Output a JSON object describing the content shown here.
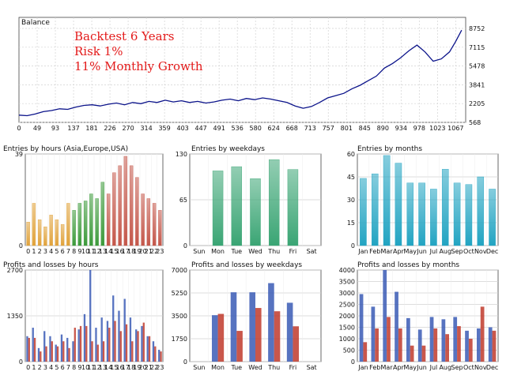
{
  "colors": {
    "balance_line": "#0b138a",
    "annotation": "#e31a1a",
    "grid": "#d2d2d2",
    "frame": "#444444",
    "buy": "#3a5bb5",
    "sell": "#c0392b",
    "orange": "#e0a23a",
    "green": "#3c9a3a",
    "red": "#c4574a",
    "teal_green": "#3aa574",
    "cyan": "#22a4c2"
  },
  "chart_data": [
    {
      "id": "balance",
      "type": "line",
      "title": "Balance",
      "annotations": [
        "Backtest 6 Years",
        "Risk 1%",
        "11% Monthly Growth"
      ],
      "x_ticks": [
        "0",
        "49",
        "93",
        "137",
        "181",
        "226",
        "270",
        "314",
        "359",
        "403",
        "447",
        "491",
        "536",
        "580",
        "624",
        "668",
        "713",
        "757",
        "801",
        "845",
        "890",
        "934",
        "978",
        "1023",
        "1067"
      ],
      "y_ticks": [
        "8752",
        "7115",
        "5478",
        "3841",
        "2205",
        "568"
      ],
      "xlim": [
        0,
        1100
      ],
      "ylim": [
        568,
        8752
      ],
      "grid": true,
      "x": [
        0,
        20,
        40,
        60,
        80,
        100,
        120,
        140,
        160,
        180,
        200,
        220,
        240,
        260,
        280,
        300,
        320,
        340,
        360,
        380,
        400,
        420,
        440,
        460,
        480,
        500,
        520,
        540,
        560,
        580,
        600,
        620,
        640,
        660,
        680,
        700,
        720,
        740,
        760,
        780,
        800,
        820,
        840,
        860,
        880,
        900,
        920,
        940,
        960,
        980,
        1000,
        1020,
        1040,
        1060,
        1075,
        1090
      ],
      "values": [
        1200,
        1150,
        1300,
        1500,
        1600,
        1750,
        1700,
        1900,
        2050,
        2100,
        2000,
        2150,
        2250,
        2100,
        2300,
        2200,
        2400,
        2300,
        2500,
        2350,
        2450,
        2300,
        2400,
        2250,
        2350,
        2500,
        2600,
        2450,
        2650,
        2550,
        2700,
        2600,
        2450,
        2300,
        2000,
        1800,
        1950,
        2300,
        2700,
        2900,
        3100,
        3500,
        3800,
        4200,
        4600,
        5300,
        5700,
        6200,
        6800,
        7300,
        6700,
        5900,
        6100,
        6700,
        7600,
        8600
      ]
    },
    {
      "id": "entries-hours",
      "type": "bar",
      "title": "Entries by hours (Asia,Europe,USA)",
      "categories": [
        "0",
        "1",
        "2",
        "3",
        "4",
        "5",
        "6",
        "7",
        "8",
        "9",
        "10",
        "11",
        "12",
        "13",
        "14",
        "15",
        "16",
        "17",
        "18",
        "19",
        "20",
        "21",
        "22",
        "23"
      ],
      "values": [
        10,
        18,
        11,
        8,
        13,
        11,
        9,
        18,
        15,
        18,
        19,
        22,
        20,
        27,
        22,
        31,
        34,
        38,
        34,
        29,
        22,
        20,
        18,
        15
      ],
      "y_ticks": [
        "39",
        "0"
      ],
      "ylim": [
        0,
        39
      ],
      "grid": true,
      "bar_color_groups": [
        "orange",
        "orange",
        "orange",
        "orange",
        "orange",
        "orange",
        "orange",
        "orange",
        "green",
        "green",
        "green",
        "green",
        "green",
        "green",
        "red",
        "red",
        "red",
        "red",
        "red",
        "red",
        "red",
        "red",
        "red",
        "red"
      ]
    },
    {
      "id": "entries-weekdays",
      "type": "bar",
      "title": "Entries by weekdays",
      "categories": [
        "Sun",
        "Mon",
        "Tue",
        "Wed",
        "Thu",
        "Fri",
        "Sat"
      ],
      "values": [
        0,
        106,
        112,
        95,
        122,
        108,
        0
      ],
      "y_ticks": [
        "130",
        "65",
        "0"
      ],
      "ylim": [
        0,
        130
      ],
      "grid": true
    },
    {
      "id": "entries-months",
      "type": "bar",
      "title": "Entries by months",
      "categories": [
        "Jan",
        "Feb",
        "Mar",
        "Apr",
        "May",
        "Jun",
        "Jul",
        "Aug",
        "Sep",
        "Oct",
        "Nov",
        "Dec"
      ],
      "values": [
        44,
        47,
        59,
        54,
        41,
        41,
        37,
        50,
        41,
        40,
        45,
        37
      ],
      "y_ticks": [
        "60",
        "45",
        "30",
        "15",
        "0"
      ],
      "ylim": [
        0,
        60
      ],
      "grid": true
    },
    {
      "id": "pl-hours",
      "type": "bar",
      "title": "Profits and losses by hours",
      "categories": [
        "0",
        "1",
        "2",
        "3",
        "4",
        "5",
        "6",
        "7",
        "8",
        "9",
        "10",
        "11",
        "12",
        "13",
        "14",
        "15",
        "16",
        "17",
        "18",
        "19",
        "20",
        "21",
        "22",
        "23"
      ],
      "series": [
        {
          "values": [
            750,
            1000,
            400,
            900,
            750,
            500,
            800,
            700,
            600,
            950,
            1400,
            2700,
            1000,
            1300,
            1200,
            1950,
            1500,
            1850,
            1300,
            950,
            1050,
            750,
            600,
            350
          ]
        },
        {
          "values": [
            700,
            700,
            300,
            450,
            600,
            450,
            600,
            400,
            1000,
            1050,
            1050,
            600,
            500,
            600,
            1000,
            1200,
            900,
            1100,
            600,
            900,
            1150,
            750,
            450,
            300
          ]
        }
      ],
      "y_ticks": [
        "2700",
        "1350",
        "0"
      ],
      "ylim": [
        0,
        2700
      ],
      "grid": true
    },
    {
      "id": "pl-weekdays",
      "type": "bar",
      "title": "Profits and losses by weekdays",
      "categories": [
        "Sun",
        "Mon",
        "Tue",
        "Wed",
        "Thu",
        "Fri",
        "Sat"
      ],
      "series": [
        {
          "values": [
            0,
            3550,
            5300,
            5300,
            6000,
            4500,
            0
          ]
        },
        {
          "values": [
            0,
            3650,
            2350,
            4100,
            3850,
            2700,
            0
          ]
        }
      ],
      "y_ticks": [
        "7000",
        "5250",
        "3500",
        "1750",
        "0"
      ],
      "ylim": [
        0,
        7000
      ],
      "grid": true
    },
    {
      "id": "pl-months",
      "type": "bar",
      "title": "Profits and losses by months",
      "categories": [
        "Jan",
        "Feb",
        "Mar",
        "Apr",
        "May",
        "Jun",
        "Jul",
        "Aug",
        "Sep",
        "Oct",
        "Nov",
        "Dec"
      ],
      "series": [
        {
          "values": [
            2950,
            2400,
            4000,
            3050,
            1900,
            1400,
            1950,
            1850,
            1950,
            1350,
            1450,
            1500
          ]
        },
        {
          "values": [
            850,
            1450,
            1950,
            1450,
            700,
            700,
            1450,
            1200,
            1550,
            1000,
            2400,
            1350
          ]
        }
      ],
      "y_ticks": [
        "4000",
        "3500",
        "3000",
        "2500",
        "2000",
        "1500",
        "1000",
        "500",
        "0"
      ],
      "ylim": [
        0,
        4000
      ],
      "grid": true
    }
  ]
}
